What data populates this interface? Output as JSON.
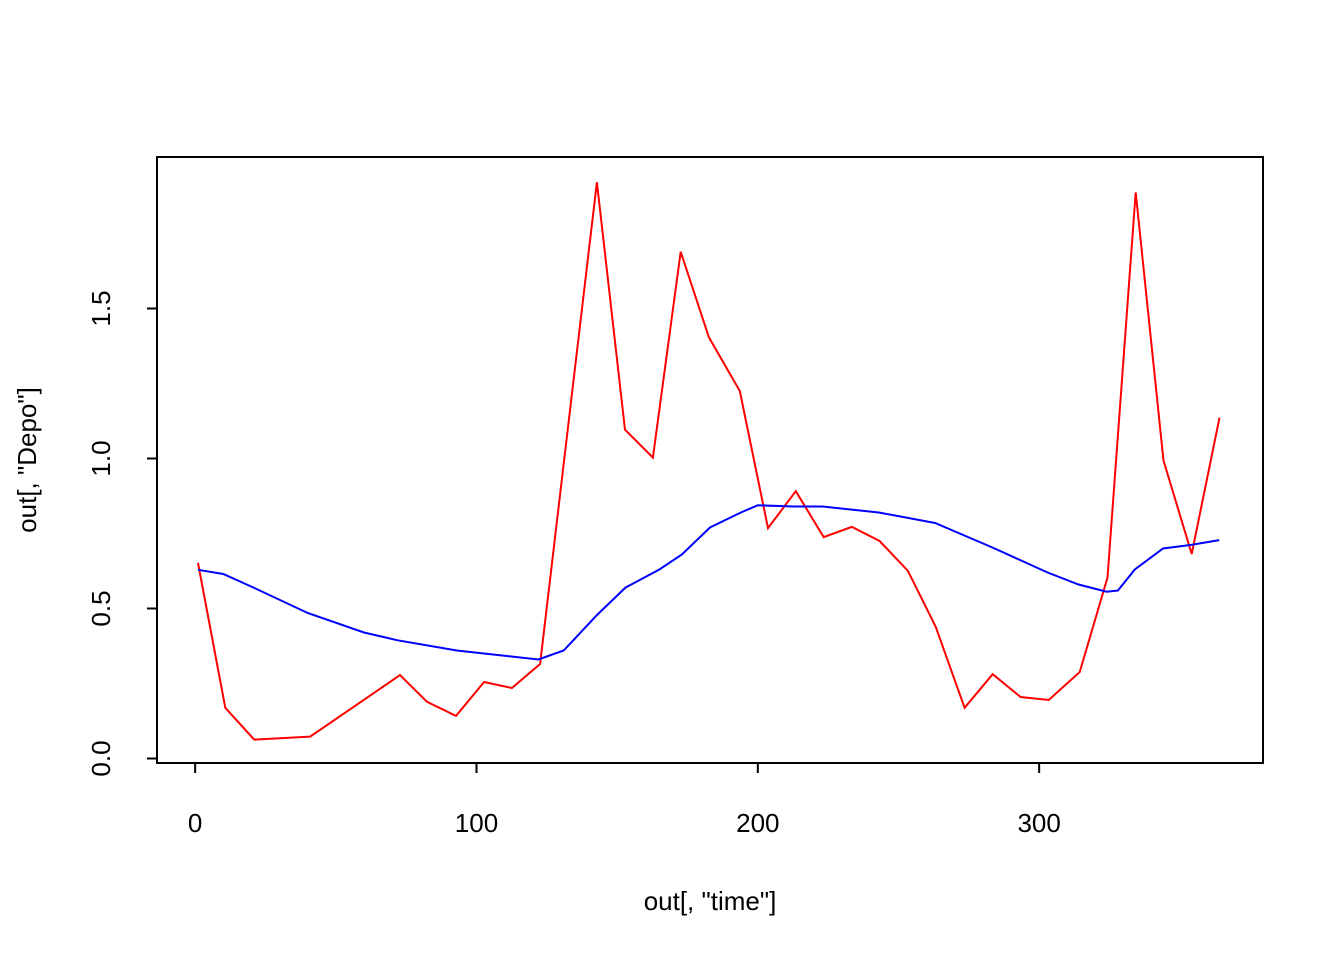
{
  "chart_data": {
    "type": "line",
    "xlabel": "out[, \"time\"]",
    "ylabel": "out[, \"Depo\"]",
    "xlim": [
      -13.56,
      379.56
    ],
    "ylim": [
      -0.015,
      2.005
    ],
    "xticks": [
      0,
      100,
      200,
      300
    ],
    "yticks": [
      {
        "value": 0,
        "label": "0.0"
      },
      0.5,
      {
        "value": 1,
        "label": "1.0"
      },
      1.5
    ],
    "series": [
      {
        "color": "#ff0000",
        "x": [
          1,
          10.7,
          21,
          40.9,
          72.8,
          82.4,
          92.7,
          102.7,
          112.6,
          122.6,
          142.8,
          152.8,
          162.7,
          172.6,
          182.6,
          193.6,
          203.6,
          213.5,
          223.4,
          233.4,
          243.3,
          253.3,
          263.2,
          273.5,
          283.5,
          293.4,
          303.4,
          314.4,
          324.3,
          334.3,
          344.2,
          354.2,
          364.1
        ],
        "values": [
          0.652,
          0.169,
          0.063,
          0.073,
          0.278,
          0.189,
          0.142,
          0.255,
          0.235,
          0.315,
          1.921,
          1.096,
          1.003,
          1.689,
          1.404,
          1.225,
          0.768,
          0.891,
          0.738,
          0.772,
          0.725,
          0.626,
          0.44,
          0.169,
          0.281,
          0.205,
          0.195,
          0.288,
          0.603,
          1.887,
          0.993,
          0.682,
          1.136
        ]
      },
      {
        "color": "#0000ff",
        "x": [
          1,
          10,
          20,
          40,
          60,
          72,
          93,
          122,
          131,
          143,
          153,
          165,
          173,
          183,
          194,
          200,
          213,
          223,
          243,
          263,
          273,
          283,
          303,
          314,
          324,
          328,
          334,
          344,
          354,
          364
        ],
        "values": [
          0.629,
          0.615,
          0.573,
          0.485,
          0.42,
          0.394,
          0.36,
          0.33,
          0.36,
          0.48,
          0.57,
          0.63,
          0.68,
          0.77,
          0.82,
          0.844,
          0.84,
          0.84,
          0.82,
          0.785,
          0.745,
          0.705,
          0.62,
          0.58,
          0.556,
          0.56,
          0.63,
          0.7,
          0.712,
          0.728
        ]
      }
    ]
  }
}
